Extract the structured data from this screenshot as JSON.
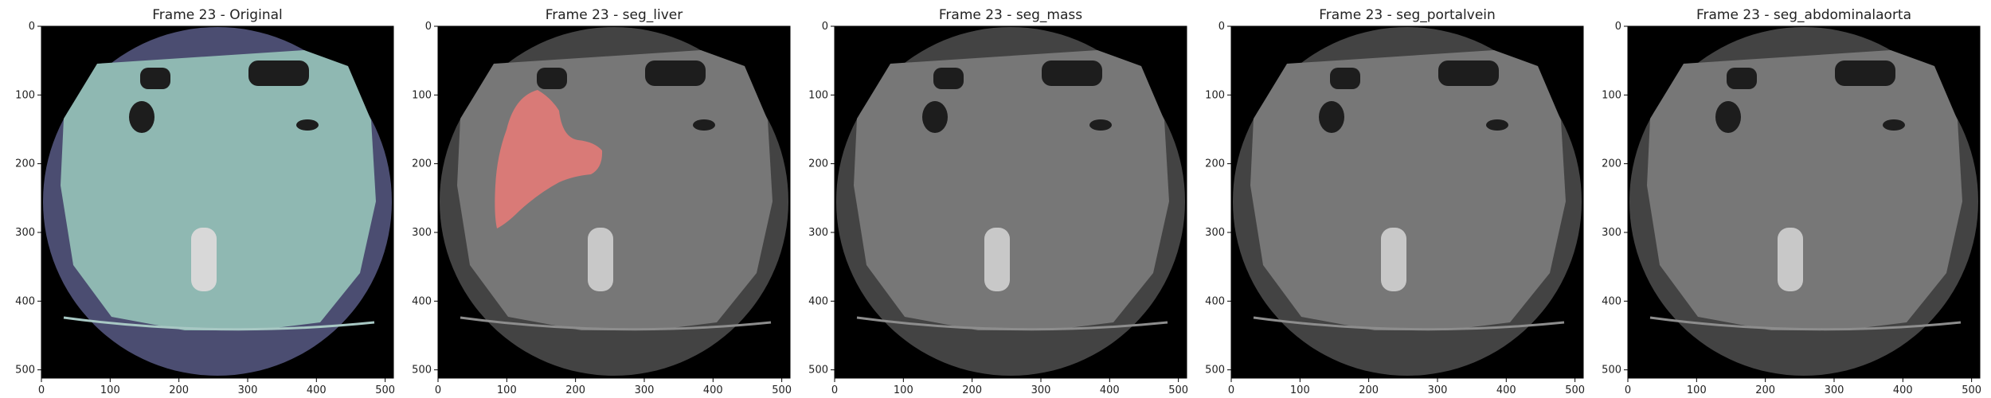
{
  "figure": {
    "panels": [
      {
        "title": "Frame 23 - Original",
        "style": "original"
      },
      {
        "title": "Frame 23 - seg_liver",
        "style": "overlay",
        "mask": "liver"
      },
      {
        "title": "Frame 23 - seg_mass",
        "style": "overlay",
        "mask": null
      },
      {
        "title": "Frame 23 - seg_portalvein",
        "style": "overlay",
        "mask": null
      },
      {
        "title": "Frame 23 - seg_abdominalaorta",
        "style": "overlay",
        "mask": null
      }
    ],
    "x_ticks": [
      "0",
      "100",
      "200",
      "300",
      "400",
      "500"
    ],
    "y_ticks": [
      "0",
      "100",
      "200",
      "300",
      "400",
      "500"
    ],
    "x_tick_values": [
      0,
      100,
      200,
      300,
      400,
      500
    ],
    "y_tick_values": [
      0,
      100,
      200,
      300,
      400,
      500
    ],
    "image_extent": [
      0,
      512
    ],
    "colors": {
      "original_background": "#000000",
      "original_body": "#8fb8b2",
      "original_fov": "#4b4d71",
      "overlay_fov": "#434343",
      "overlay_body": "#777777",
      "liver_mask": "#d97a77",
      "gas": "#1d1d1d",
      "bone": "#d8d8d8"
    }
  }
}
